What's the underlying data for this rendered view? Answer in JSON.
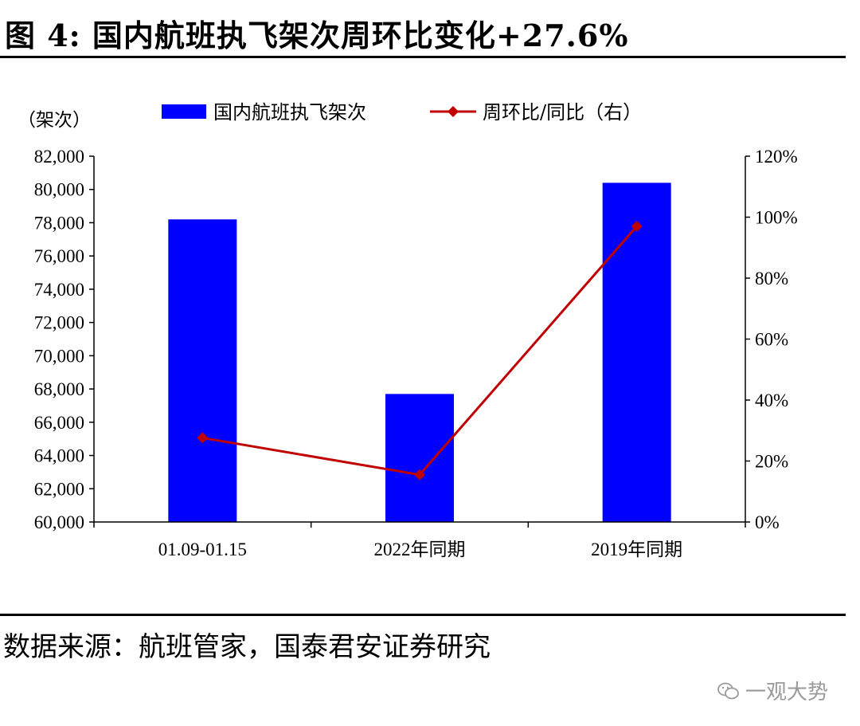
{
  "figure": {
    "title": "图 4:  国内航班执飞架次周环比变化+27.6%",
    "source": "数据来源：航班管家，国泰君安证券研究",
    "watermark": "一观大势",
    "left_unit": "（架次）"
  },
  "colors": {
    "bar": "#0000ff",
    "line": "#c00000"
  },
  "chart_data": {
    "type": "bar",
    "categories": [
      "01.09-01.15",
      "2022年同期",
      "2019年同期"
    ],
    "series": [
      {
        "name": "国内航班执飞架次",
        "type": "bar",
        "axis": "left",
        "values": [
          78200,
          67700,
          80400
        ]
      },
      {
        "name": "周环比/同比（右）",
        "type": "line",
        "axis": "right",
        "values": [
          0.276,
          0.155,
          0.97
        ]
      }
    ],
    "left_axis": {
      "ylim": [
        60000,
        82000
      ],
      "ticks": [
        60000,
        62000,
        64000,
        66000,
        68000,
        70000,
        72000,
        74000,
        76000,
        78000,
        80000,
        82000
      ],
      "tick_labels": [
        "60,000",
        "62,000",
        "64,000",
        "66,000",
        "68,000",
        "70,000",
        "72,000",
        "74,000",
        "76,000",
        "78,000",
        "80,000",
        "82,000"
      ]
    },
    "right_axis": {
      "ylim": [
        0,
        1.2
      ],
      "ticks": [
        0,
        0.2,
        0.4,
        0.6,
        0.8,
        1.0,
        1.2
      ],
      "tick_labels": [
        "0%",
        "20%",
        "40%",
        "60%",
        "80%",
        "100%",
        "120%"
      ]
    },
    "legend": [
      "国内航班执飞架次",
      "周环比/同比（右）"
    ],
    "legend_position": "top",
    "grid": false
  }
}
